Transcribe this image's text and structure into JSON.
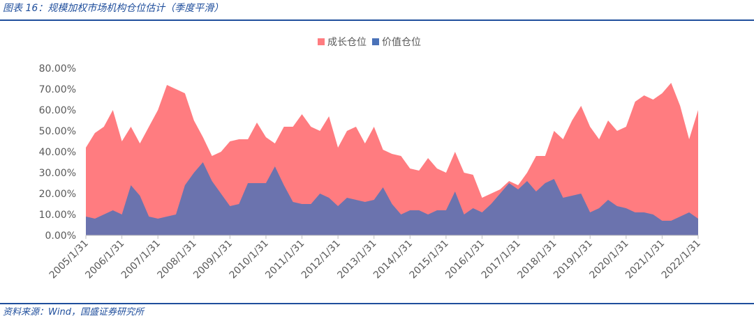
{
  "header": {
    "title": "图表 16：规模加权市场机构仓位估计（季度平滑）"
  },
  "footer": {
    "source": "资料来源：Wind，国盛证券研究所"
  },
  "chart_data": {
    "type": "area",
    "categories": [
      "2005/1/31",
      null,
      null,
      null,
      "2006/1/31",
      null,
      null,
      null,
      "2007/1/31",
      null,
      null,
      null,
      "2008/1/31",
      null,
      null,
      null,
      "2009/1/31",
      null,
      null,
      null,
      "2010/1/31",
      null,
      null,
      null,
      "2011/1/31",
      null,
      null,
      null,
      "2012/1/31",
      null,
      null,
      null,
      "2013/1/31",
      null,
      null,
      null,
      "2014/1/31",
      null,
      null,
      null,
      "2015/1/31",
      null,
      null,
      null,
      "2016/1/31",
      null,
      null,
      null,
      "2017/1/31",
      null,
      null,
      null,
      "2018/1/31",
      null,
      null,
      null,
      "2019/1/31",
      null,
      null,
      null,
      "2020/1/31",
      null,
      null,
      null,
      "2021/1/31",
      null,
      null,
      null,
      "2022/1/31"
    ],
    "series": [
      {
        "name": "成长仓位",
        "color": "#ff7c80",
        "values": [
          42,
          49,
          52,
          60,
          45,
          52,
          44,
          52,
          60,
          72,
          70,
          68,
          55,
          47,
          38,
          40,
          45,
          46,
          46,
          54,
          47,
          44,
          52,
          52,
          58,
          52,
          50,
          57,
          42,
          50,
          52,
          44,
          52,
          41,
          39,
          38,
          32,
          31,
          37,
          32,
          30,
          40,
          30,
          29,
          18,
          20,
          22,
          26,
          24,
          30,
          38,
          38,
          50,
          46,
          55,
          62,
          52,
          46,
          55,
          50,
          52,
          64,
          67,
          65,
          68,
          73,
          62,
          46,
          60
        ]
      },
      {
        "name": "价值仓位",
        "color": "#4a72b8",
        "values": [
          9,
          8,
          10,
          12,
          10,
          24,
          19,
          9,
          8,
          9,
          10,
          24,
          30,
          35,
          26,
          20,
          14,
          15,
          25,
          25,
          25,
          33,
          24,
          16,
          15,
          15,
          20,
          18,
          14,
          18,
          17,
          16,
          17,
          23,
          15,
          10,
          12,
          12,
          10,
          12,
          12,
          21,
          10,
          13,
          11,
          15,
          20,
          25,
          22,
          26,
          21,
          25,
          27,
          18,
          19,
          20,
          11,
          13,
          17,
          14,
          13,
          11,
          11,
          10,
          7,
          7,
          9,
          11,
          8
        ]
      }
    ],
    "ylim": [
      0,
      80
    ],
    "yticks": [
      {
        "value": 0,
        "label": "0.00%"
      },
      {
        "value": 10,
        "label": "10.00%"
      },
      {
        "value": 20,
        "label": "20.00%"
      },
      {
        "value": 30,
        "label": "30.00%"
      },
      {
        "value": 40,
        "label": "40.00%"
      },
      {
        "value": 50,
        "label": "50.00%"
      },
      {
        "value": 60,
        "label": "60.00%"
      },
      {
        "value": 70,
        "label": "70.00%"
      },
      {
        "value": 80,
        "label": "80.00%"
      }
    ]
  }
}
